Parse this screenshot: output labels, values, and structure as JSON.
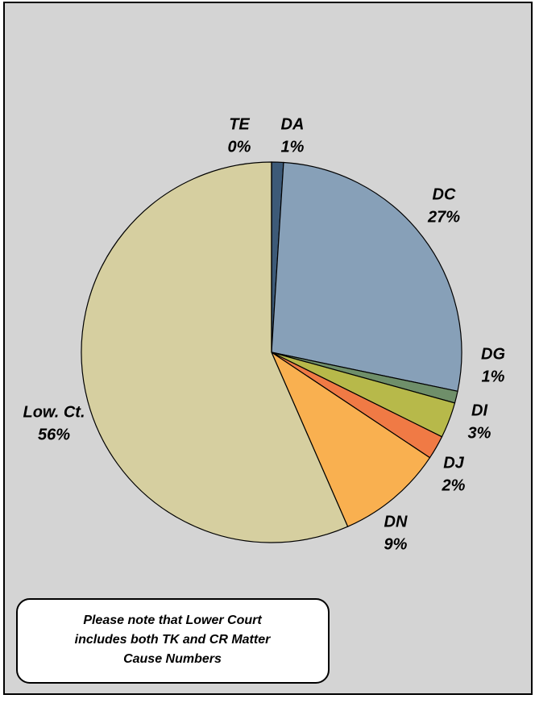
{
  "chart_data": {
    "type": "pie",
    "categories": [
      "DA",
      "DC",
      "DG",
      "DI",
      "DJ",
      "DN",
      "Low. Ct.",
      "TE"
    ],
    "values": [
      1,
      27,
      1,
      3,
      2,
      9,
      56,
      0
    ],
    "value_labels": [
      "1%",
      "27%",
      "1%",
      "3%",
      "2%",
      "9%",
      "56%",
      "0%"
    ],
    "colors": [
      "#3d5a78",
      "#87a0b8",
      "#6f8f6a",
      "#b7b94a",
      "#f07a45",
      "#f9b050",
      "#d6cfa0",
      "#b3a893"
    ],
    "note": [
      "Please note that Lower Court",
      "includes both TK and CR Matter",
      "Cause Numbers"
    ]
  }
}
